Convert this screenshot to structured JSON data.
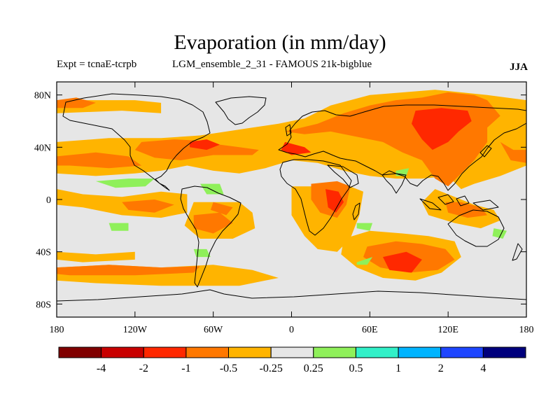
{
  "figure": {
    "title": "Evaporation (in mm/day)",
    "experiment": "Expt = tcnaE-tcrpb",
    "run": "LGM_ensemble_2_31 - FAMOUS 21k-bigblue",
    "season": "JJA"
  },
  "map_data": {
    "type": "contour-map",
    "projection": "equirectangular",
    "lon_range": [
      -180,
      180
    ],
    "lat_range": [
      -90,
      90
    ],
    "lat_ticks": [
      {
        "value": 80,
        "label": "80N"
      },
      {
        "value": 40,
        "label": "40N"
      },
      {
        "value": 0,
        "label": "0"
      },
      {
        "value": -40,
        "label": "40S"
      },
      {
        "value": -80,
        "label": "80S"
      }
    ],
    "lon_ticks": [
      {
        "value": -180,
        "label": "180"
      },
      {
        "value": -120,
        "label": "120W"
      },
      {
        "value": -60,
        "label": "60W"
      },
      {
        "value": 0,
        "label": "0"
      },
      {
        "value": 60,
        "label": "60E"
      },
      {
        "value": 120,
        "label": "120E"
      },
      {
        "value": 180,
        "label": "180"
      }
    ],
    "background_color": "#e6e6e6",
    "colorbar": {
      "colors": [
        "#800000",
        "#c80000",
        "#ff2800",
        "#ff7800",
        "#ffb400",
        "#e6e6e6",
        "#8ff05a",
        "#32f0c8",
        "#00b4ff",
        "#1e46ff",
        "#00007d"
      ],
      "labels": [
        "-4",
        "-2",
        "-1",
        "-0.5",
        "-0.25",
        "0.25",
        "0.5",
        "1",
        "2",
        "4"
      ]
    },
    "fields": [
      {
        "level": "-0.25",
        "color": "#ffb400",
        "poly": [
          [
            -180,
            76
          ],
          [
            -120,
            76
          ],
          [
            -100,
            74
          ],
          [
            -100,
            66
          ],
          [
            -130,
            68
          ],
          [
            -180,
            66
          ]
        ]
      },
      {
        "level": "-0.25",
        "color": "#ffb400",
        "poly": [
          [
            -180,
            44
          ],
          [
            -140,
            47
          ],
          [
            -100,
            47
          ],
          [
            -70,
            49
          ],
          [
            -50,
            52
          ],
          [
            -30,
            55
          ],
          [
            -10,
            58
          ],
          [
            10,
            62
          ],
          [
            30,
            72
          ],
          [
            60,
            80
          ],
          [
            110,
            84
          ],
          [
            150,
            80
          ],
          [
            180,
            76
          ],
          [
            180,
            26
          ],
          [
            160,
            18
          ],
          [
            140,
            12
          ],
          [
            130,
            8
          ],
          [
            120,
            18
          ],
          [
            100,
            16
          ],
          [
            80,
            16
          ],
          [
            60,
            18
          ],
          [
            40,
            22
          ],
          [
            20,
            28
          ],
          [
            0,
            30
          ],
          [
            -20,
            24
          ],
          [
            -40,
            20
          ],
          [
            -60,
            22
          ],
          [
            -80,
            26
          ],
          [
            -100,
            22
          ],
          [
            -120,
            20
          ],
          [
            -150,
            18
          ],
          [
            -180,
            20
          ]
        ]
      },
      {
        "level": "-0.25",
        "color": "#ffb400",
        "poly": [
          [
            -180,
            8
          ],
          [
            -160,
            4
          ],
          [
            -130,
            2
          ],
          [
            -100,
            6
          ],
          [
            -80,
            4
          ],
          [
            -80,
            -10
          ],
          [
            -100,
            -14
          ],
          [
            -130,
            -12
          ],
          [
            -160,
            -6
          ],
          [
            -180,
            -4
          ]
        ]
      },
      {
        "level": "-0.25",
        "color": "#ffb400",
        "poly": [
          [
            -75,
            -2
          ],
          [
            -40,
            -2
          ],
          [
            -30,
            -10
          ],
          [
            -28,
            -22
          ],
          [
            -45,
            -30
          ],
          [
            -70,
            -30
          ],
          [
            -82,
            -20
          ]
        ]
      },
      {
        "level": "-0.25",
        "color": "#ffb400",
        "poly": [
          [
            0,
            10
          ],
          [
            20,
            10
          ],
          [
            40,
            12
          ],
          [
            55,
            6
          ],
          [
            52,
            -12
          ],
          [
            45,
            -30
          ],
          [
            35,
            -40
          ],
          [
            20,
            -38
          ],
          [
            10,
            -28
          ],
          [
            0,
            -12
          ]
        ]
      },
      {
        "level": "-0.25",
        "color": "#ffb400",
        "poly": [
          [
            40,
            -30
          ],
          [
            60,
            -24
          ],
          [
            85,
            -26
          ],
          [
            105,
            -28
          ],
          [
            125,
            -32
          ],
          [
            130,
            -44
          ],
          [
            115,
            -56
          ],
          [
            95,
            -62
          ],
          [
            70,
            -60
          ],
          [
            50,
            -52
          ],
          [
            38,
            -42
          ]
        ]
      },
      {
        "level": "-0.25",
        "color": "#ffb400",
        "poly": [
          [
            110,
            8
          ],
          [
            125,
            2
          ],
          [
            140,
            -4
          ],
          [
            155,
            -8
          ],
          [
            160,
            -16
          ],
          [
            145,
            -22
          ],
          [
            125,
            -18
          ],
          [
            105,
            -12
          ],
          [
            100,
            -2
          ]
        ]
      },
      {
        "level": "-0.25",
        "color": "#ffb400",
        "poly": [
          [
            -180,
            -52
          ],
          [
            -140,
            -50
          ],
          [
            -100,
            -52
          ],
          [
            -60,
            -50
          ],
          [
            -30,
            -54
          ],
          [
            -10,
            -60
          ],
          [
            -40,
            -66
          ],
          [
            -100,
            -66
          ],
          [
            -150,
            -64
          ],
          [
            -180,
            -62
          ]
        ]
      },
      {
        "level": "-0.25",
        "color": "#ffb400",
        "poly": [
          [
            -180,
            -40
          ],
          [
            -150,
            -42
          ],
          [
            -120,
            -40
          ],
          [
            -120,
            -46
          ],
          [
            -160,
            -48
          ],
          [
            -180,
            -46
          ]
        ]
      },
      {
        "level": "-0.5",
        "color": "#ff7800",
        "poly": [
          [
            -180,
            33
          ],
          [
            -150,
            36
          ],
          [
            -125,
            33
          ],
          [
            -115,
            26
          ],
          [
            -140,
            24
          ],
          [
            -170,
            26
          ],
          [
            -180,
            26
          ]
        ]
      },
      {
        "level": "-0.5",
        "color": "#ff7800",
        "poly": [
          [
            -115,
            44
          ],
          [
            -90,
            46
          ],
          [
            -70,
            45
          ],
          [
            -55,
            42
          ],
          [
            -40,
            40
          ],
          [
            -25,
            38
          ],
          [
            -30,
            34
          ],
          [
            -60,
            34
          ],
          [
            -85,
            30
          ],
          [
            -105,
            32
          ],
          [
            -120,
            38
          ]
        ]
      },
      {
        "level": "-0.5",
        "color": "#ff7800",
        "poly": [
          [
            -180,
            76
          ],
          [
            -165,
            78
          ],
          [
            -150,
            74
          ],
          [
            -160,
            70
          ],
          [
            -180,
            70
          ]
        ]
      },
      {
        "level": "-0.5",
        "color": "#ff7800",
        "poly": [
          [
            -5,
            52
          ],
          [
            20,
            58
          ],
          [
            40,
            66
          ],
          [
            60,
            72
          ],
          [
            80,
            76
          ],
          [
            100,
            78
          ],
          [
            120,
            82
          ],
          [
            140,
            80
          ],
          [
            150,
            76
          ],
          [
            160,
            64
          ],
          [
            150,
            55
          ],
          [
            150,
            44
          ],
          [
            140,
            30
          ],
          [
            130,
            20
          ],
          [
            120,
            10
          ],
          [
            110,
            16
          ],
          [
            100,
            30
          ],
          [
            85,
            36
          ],
          [
            70,
            44
          ],
          [
            50,
            48
          ],
          [
            30,
            52
          ],
          [
            10,
            50
          ]
        ]
      },
      {
        "level": "-0.5",
        "color": "#ff7800",
        "poly": [
          [
            160,
            44
          ],
          [
            170,
            38
          ],
          [
            180,
            38
          ],
          [
            180,
            28
          ],
          [
            168,
            30
          ]
        ]
      },
      {
        "level": "-0.5",
        "color": "#ff7800",
        "poly": [
          [
            15,
            12
          ],
          [
            35,
            14
          ],
          [
            45,
            10
          ],
          [
            42,
            -4
          ],
          [
            35,
            -14
          ],
          [
            22,
            -10
          ],
          [
            15,
            0
          ]
        ]
      },
      {
        "level": "-0.5",
        "color": "#ff7800",
        "poly": [
          [
            -130,
            -2
          ],
          [
            -105,
            0
          ],
          [
            -90,
            -4
          ],
          [
            -105,
            -10
          ],
          [
            -125,
            -8
          ]
        ]
      },
      {
        "level": "-0.5",
        "color": "#ff7800",
        "poly": [
          [
            -75,
            -12
          ],
          [
            -55,
            -10
          ],
          [
            -45,
            -18
          ],
          [
            -60,
            -26
          ],
          [
            -75,
            -22
          ]
        ]
      },
      {
        "level": "-0.5",
        "color": "#ff7800",
        "poly": [
          [
            -60,
            -2
          ],
          [
            -45,
            -6
          ],
          [
            -50,
            -12
          ],
          [
            -62,
            -8
          ]
        ]
      },
      {
        "level": "-0.5",
        "color": "#ff7800",
        "poly": [
          [
            -180,
            -52
          ],
          [
            -140,
            -50
          ],
          [
            -100,
            -52
          ],
          [
            -70,
            -51
          ],
          [
            -75,
            -56
          ],
          [
            -120,
            -58
          ],
          [
            -170,
            -58
          ],
          [
            -180,
            -57
          ]
        ]
      },
      {
        "level": "-0.5",
        "color": "#ff7800",
        "poly": [
          [
            58,
            -36
          ],
          [
            80,
            -32
          ],
          [
            100,
            -34
          ],
          [
            118,
            -38
          ],
          [
            125,
            -46
          ],
          [
            112,
            -54
          ],
          [
            90,
            -56
          ],
          [
            68,
            -52
          ],
          [
            55,
            -44
          ]
        ]
      },
      {
        "level": "-0.5",
        "color": "#ff7800",
        "poly": [
          [
            118,
            -2
          ],
          [
            130,
            -2
          ],
          [
            145,
            -6
          ],
          [
            150,
            -12
          ],
          [
            135,
            -14
          ],
          [
            120,
            -10
          ]
        ]
      },
      {
        "level": "-1",
        "color": "#ff2800",
        "poly": [
          [
            -78,
            44
          ],
          [
            -65,
            46
          ],
          [
            -55,
            42
          ],
          [
            -65,
            38
          ],
          [
            -78,
            40
          ]
        ]
      },
      {
        "level": "-1",
        "color": "#ff2800",
        "poly": [
          [
            95,
            68
          ],
          [
            115,
            70
          ],
          [
            135,
            68
          ],
          [
            138,
            60
          ],
          [
            128,
            52
          ],
          [
            120,
            44
          ],
          [
            108,
            38
          ],
          [
            100,
            46
          ],
          [
            92,
            58
          ]
        ]
      },
      {
        "level": "-1",
        "color": "#ff2800",
        "poly": [
          [
            26,
            8
          ],
          [
            36,
            6
          ],
          [
            40,
            -2
          ],
          [
            34,
            -10
          ],
          [
            28,
            -6
          ]
        ]
      },
      {
        "level": "-1",
        "color": "#ff2800",
        "poly": [
          [
            70,
            -44
          ],
          [
            88,
            -40
          ],
          [
            100,
            -46
          ],
          [
            92,
            -56
          ],
          [
            75,
            -54
          ]
        ]
      },
      {
        "level": "-1",
        "color": "#ff2800",
        "poly": [
          [
            -5,
            44
          ],
          [
            10,
            40
          ],
          [
            15,
            36
          ],
          [
            0,
            34
          ],
          [
            -8,
            38
          ]
        ]
      },
      {
        "level": "0.25",
        "color": "#8ff05a",
        "poly": [
          [
            -150,
            14
          ],
          [
            -125,
            16
          ],
          [
            -105,
            16
          ],
          [
            -112,
            10
          ],
          [
            -135,
            9
          ]
        ]
      },
      {
        "level": "0.25",
        "color": "#8ff05a",
        "poly": [
          [
            -70,
            12
          ],
          [
            -55,
            12
          ],
          [
            -52,
            4
          ],
          [
            -65,
            4
          ]
        ]
      },
      {
        "level": "0.25",
        "color": "#8ff05a",
        "poly": [
          [
            -140,
            -18
          ],
          [
            -125,
            -18
          ],
          [
            -125,
            -24
          ],
          [
            -138,
            -24
          ]
        ]
      },
      {
        "level": "0.25",
        "color": "#8ff05a",
        "poly": [
          [
            -75,
            -38
          ],
          [
            -65,
            -38
          ],
          [
            -62,
            -44
          ],
          [
            -73,
            -44
          ]
        ]
      },
      {
        "level": "0.25",
        "color": "#8ff05a",
        "poly": [
          [
            50,
            -18
          ],
          [
            62,
            -18
          ],
          [
            60,
            -24
          ],
          [
            50,
            -22
          ]
        ]
      },
      {
        "level": "0.25",
        "color": "#8ff05a",
        "poly": [
          [
            50,
            -48
          ],
          [
            62,
            -44
          ],
          [
            58,
            -50
          ],
          [
            50,
            -50
          ]
        ]
      },
      {
        "level": "0.25",
        "color": "#8ff05a",
        "poly": [
          [
            80,
            22
          ],
          [
            90,
            24
          ],
          [
            88,
            18
          ],
          [
            80,
            18
          ]
        ]
      },
      {
        "level": "0.25",
        "color": "#8ff05a",
        "poly": [
          [
            155,
            -22
          ],
          [
            165,
            -24
          ],
          [
            162,
            -30
          ],
          [
            154,
            -28
          ]
        ]
      }
    ]
  }
}
